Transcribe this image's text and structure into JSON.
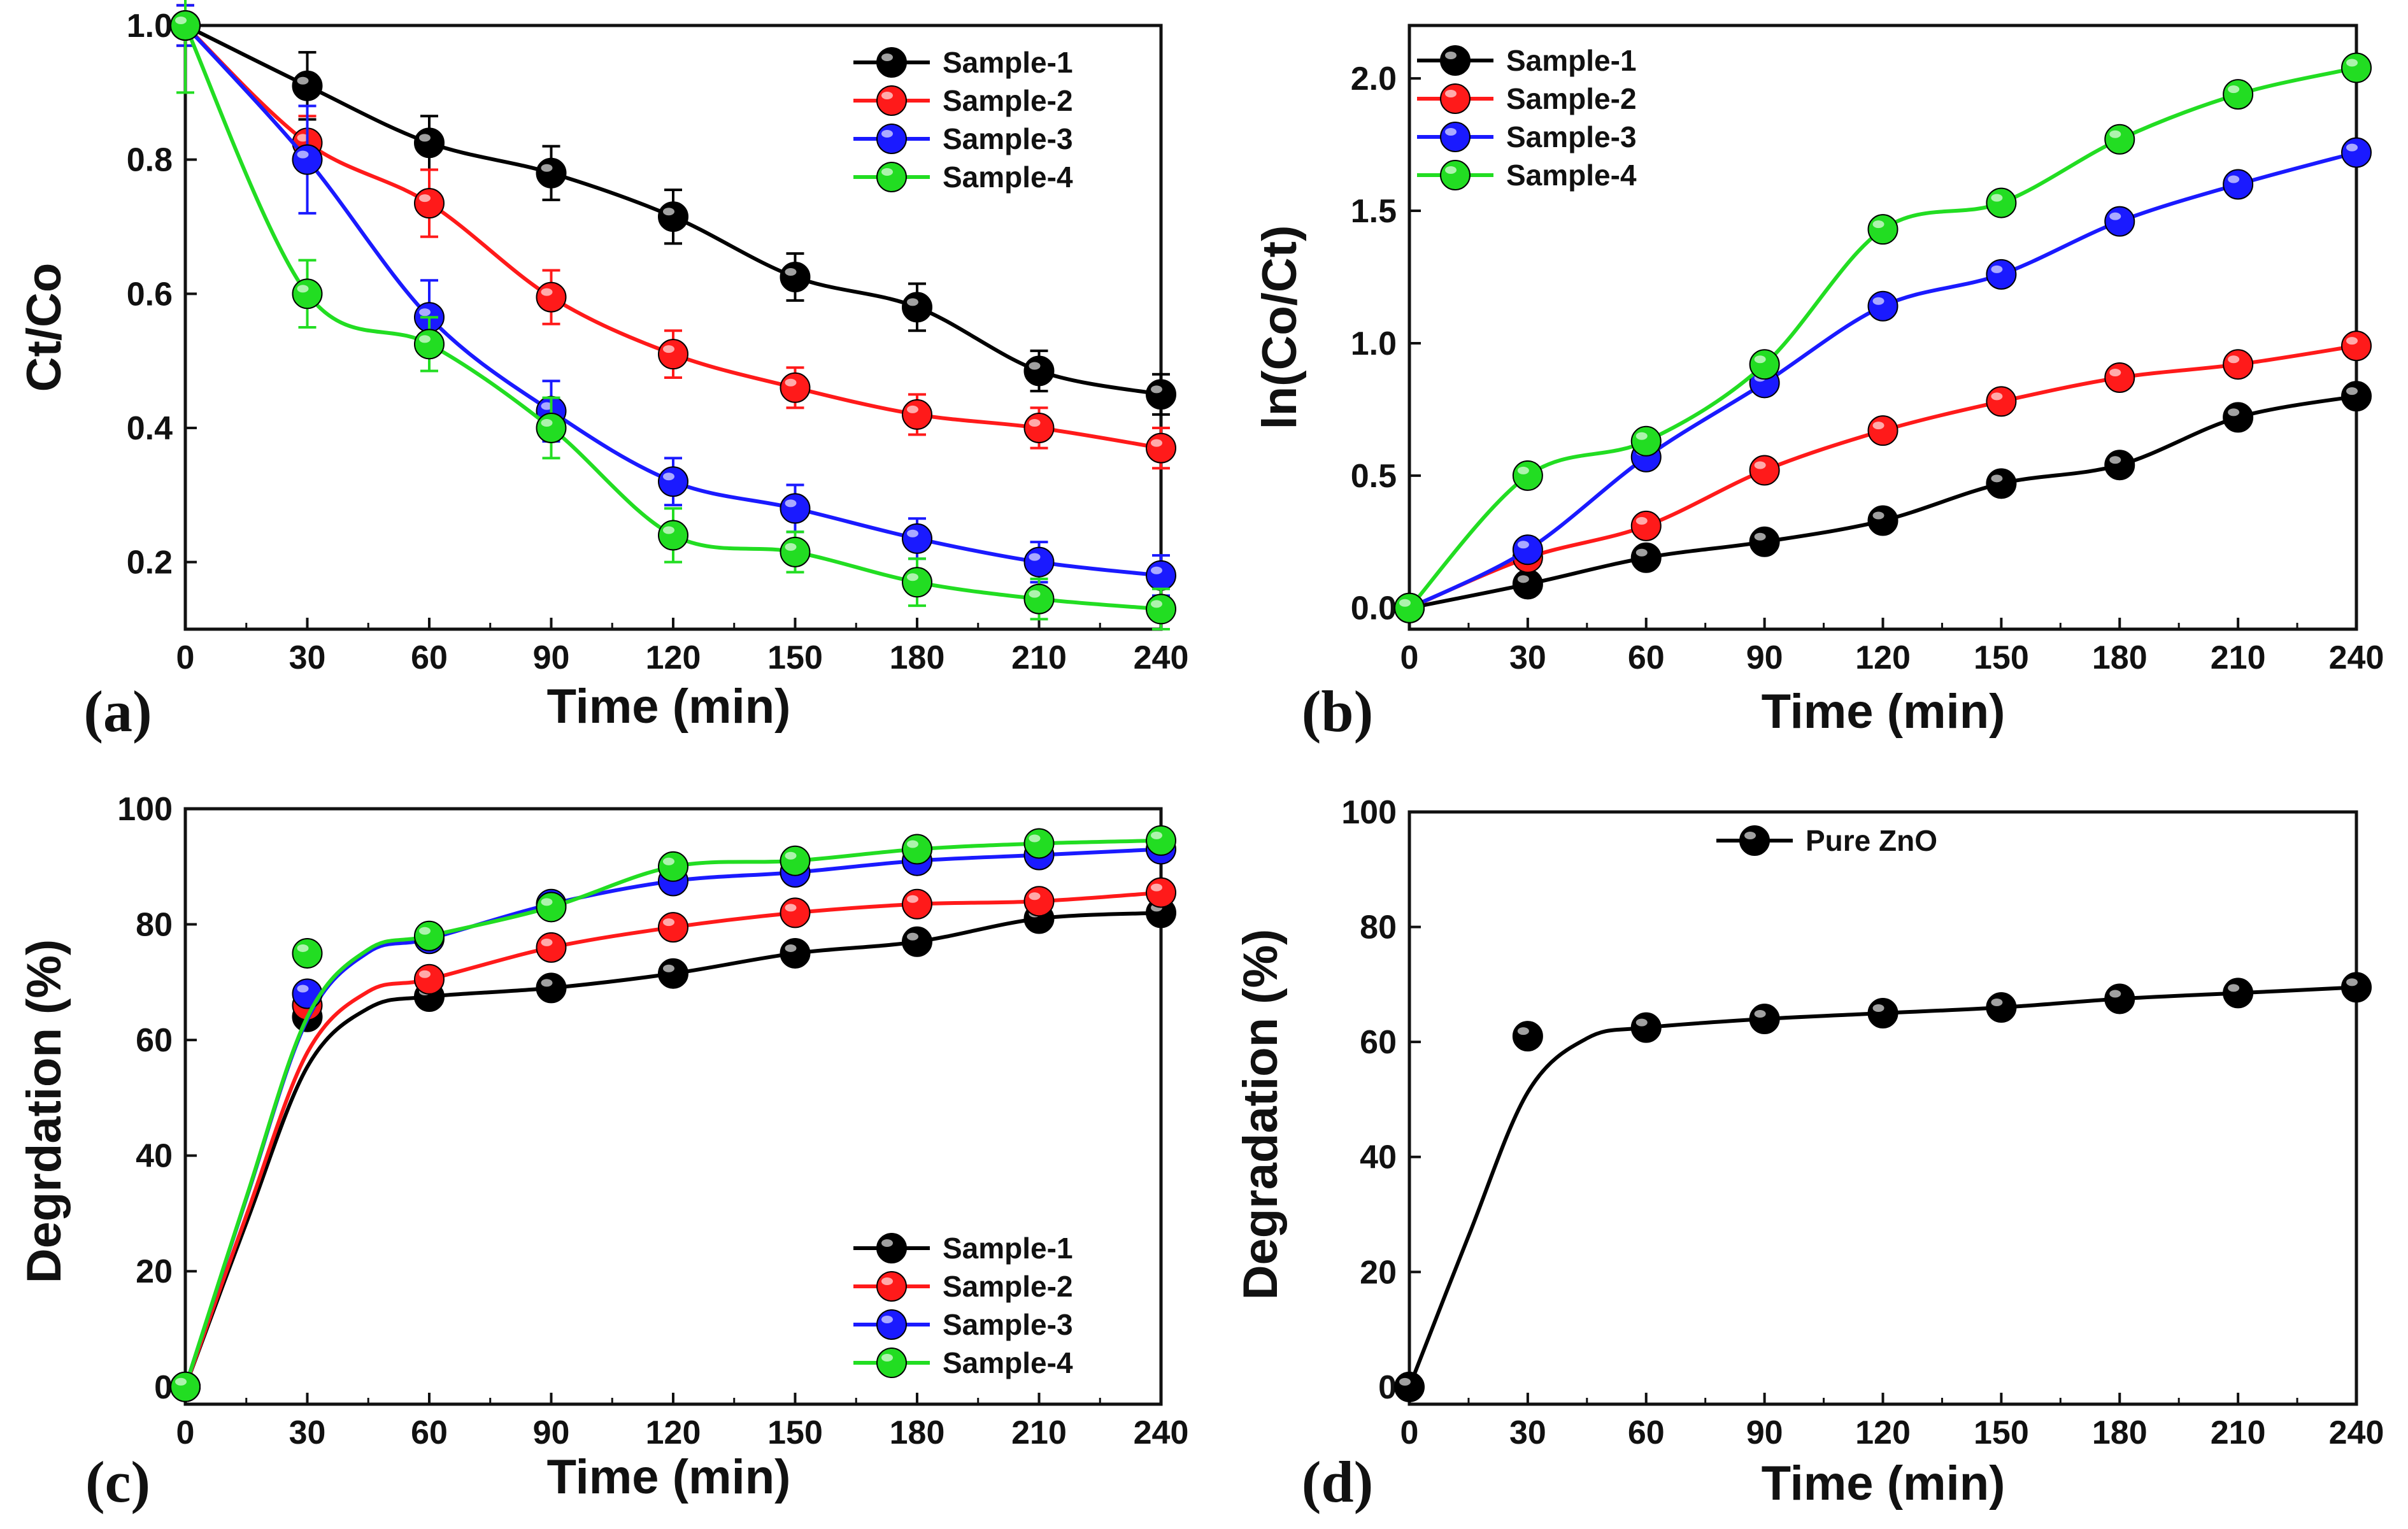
{
  "chart_data": [
    {
      "panel": "(a)",
      "type": "line",
      "xlabel": "Time (min)",
      "ylabel": "Ct/Co",
      "xlim": [
        0,
        240
      ],
      "ylim": [
        0.1,
        1.0
      ],
      "x_ticks": [
        "0",
        "30",
        "60",
        "90",
        "120",
        "150",
        "180",
        "210",
        "240"
      ],
      "y_ticks": [
        "0.2",
        "0.4",
        "0.6",
        "0.8",
        "1.0"
      ],
      "legend_position": "top-right",
      "x": [
        0,
        30,
        60,
        90,
        120,
        150,
        180,
        210,
        240
      ],
      "series": [
        {
          "name": "Sample-1",
          "color": "#000000",
          "values": [
            1.0,
            0.91,
            0.825,
            0.78,
            0.715,
            0.625,
            0.58,
            0.485,
            0.45
          ],
          "errors": [
            0.03,
            0.05,
            0.04,
            0.04,
            0.04,
            0.035,
            0.035,
            0.03,
            0.03
          ]
        },
        {
          "name": "Sample-2",
          "color": "#ff1a1a",
          "values": [
            1.0,
            0.825,
            0.735,
            0.595,
            0.51,
            0.46,
            0.42,
            0.4,
            0.37
          ],
          "errors": [
            0.03,
            0.04,
            0.05,
            0.04,
            0.035,
            0.03,
            0.03,
            0.03,
            0.03
          ]
        },
        {
          "name": "Sample-3",
          "color": "#1a1aff",
          "values": [
            1.0,
            0.8,
            0.565,
            0.425,
            0.32,
            0.28,
            0.235,
            0.2,
            0.18
          ],
          "errors": [
            0.03,
            0.08,
            0.055,
            0.045,
            0.035,
            0.035,
            0.03,
            0.03,
            0.03
          ]
        },
        {
          "name": "Sample-4",
          "color": "#22dd22",
          "values": [
            1.0,
            0.6,
            0.525,
            0.4,
            0.24,
            0.215,
            0.17,
            0.145,
            0.13
          ],
          "errors": [
            0.1,
            0.05,
            0.04,
            0.045,
            0.04,
            0.03,
            0.035,
            0.03,
            0.03
          ]
        }
      ]
    },
    {
      "panel": "(b)",
      "type": "line",
      "xlabel": "Time (min)",
      "ylabel": "ln(Co/Ct)",
      "xlim": [
        0,
        240
      ],
      "ylim": [
        -0.08,
        2.2
      ],
      "x_ticks": [
        "0",
        "30",
        "60",
        "90",
        "120",
        "150",
        "180",
        "210",
        "240"
      ],
      "y_ticks": [
        "0.0",
        "0.5",
        "1.0",
        "1.5",
        "2.0"
      ],
      "legend_position": "top-left",
      "x": [
        0,
        30,
        60,
        90,
        120,
        150,
        180,
        210,
        240
      ],
      "series": [
        {
          "name": "Sample-1",
          "color": "#000000",
          "values": [
            0.0,
            0.09,
            0.19,
            0.25,
            0.33,
            0.47,
            0.54,
            0.72,
            0.8
          ]
        },
        {
          "name": "Sample-2",
          "color": "#ff1a1a",
          "values": [
            0.0,
            0.19,
            0.31,
            0.52,
            0.67,
            0.78,
            0.87,
            0.92,
            0.99
          ]
        },
        {
          "name": "Sample-3",
          "color": "#1a1aff",
          "values": [
            0.0,
            0.22,
            0.57,
            0.85,
            1.14,
            1.26,
            1.46,
            1.6,
            1.72
          ]
        },
        {
          "name": "Sample-4",
          "color": "#22dd22",
          "values": [
            0.0,
            0.5,
            0.63,
            0.92,
            1.43,
            1.53,
            1.77,
            1.94,
            2.04
          ]
        }
      ]
    },
    {
      "panel": "(c)",
      "type": "line",
      "xlabel": "Time (min)",
      "ylabel": "Degrdation (%)",
      "xlim": [
        0,
        240
      ],
      "ylim": [
        -3,
        100
      ],
      "x_ticks": [
        "0",
        "30",
        "60",
        "90",
        "120",
        "150",
        "180",
        "210",
        "240"
      ],
      "y_ticks": [
        "0",
        "20",
        "40",
        "60",
        "80",
        "100"
      ],
      "legend_position": "bottom-right",
      "x": [
        0,
        30,
        60,
        90,
        120,
        150,
        180,
        210,
        240
      ],
      "series": [
        {
          "name": "Sample-1",
          "color": "#000000",
          "values": [
            0,
            64,
            67.5,
            69,
            71.5,
            75,
            77,
            81,
            82
          ]
        },
        {
          "name": "Sample-2",
          "color": "#ff1a1a",
          "values": [
            0,
            66,
            70.5,
            76,
            79.5,
            82,
            83.5,
            84,
            85.5
          ]
        },
        {
          "name": "Sample-3",
          "color": "#1a1aff",
          "values": [
            0,
            68,
            77.5,
            83.5,
            87.5,
            89,
            91,
            92,
            93
          ]
        },
        {
          "name": "Sample-4",
          "color": "#22dd22",
          "values": [
            0,
            75,
            78,
            83,
            90,
            91,
            93,
            94,
            94.5
          ]
        }
      ]
    },
    {
      "panel": "(d)",
      "type": "line",
      "xlabel": "Time (min)",
      "ylabel": "Degradation (%)",
      "xlim": [
        0,
        240
      ],
      "ylim": [
        -3,
        100
      ],
      "x_ticks": [
        "0",
        "30",
        "60",
        "90",
        "120",
        "150",
        "180",
        "210",
        "240"
      ],
      "y_ticks": [
        "0",
        "20",
        "40",
        "60",
        "80",
        "100"
      ],
      "legend_position": "top-center",
      "x": [
        0,
        30,
        60,
        90,
        120,
        150,
        180,
        210,
        240
      ],
      "series": [
        {
          "name": "Pure ZnO",
          "color": "#000000",
          "values": [
            0,
            61,
            62.5,
            64,
            65,
            66,
            67.5,
            68.5,
            69.5
          ]
        }
      ]
    }
  ]
}
